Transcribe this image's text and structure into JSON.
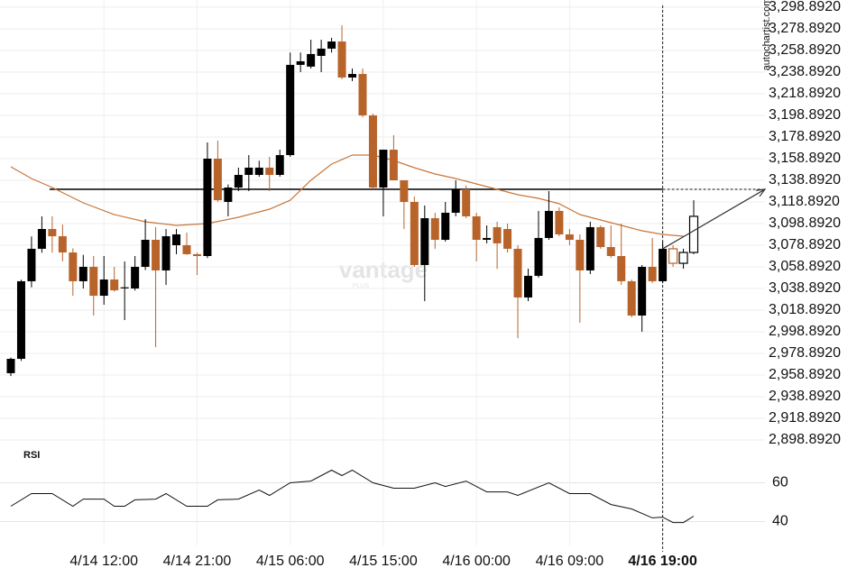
{
  "chart_data": {
    "type": "candlestick",
    "watermark": "vantage",
    "watermark_sub": "PLUS",
    "source": "autochartist.com",
    "up_color": "#000000",
    "down_color": "#b8632a",
    "grid": true,
    "ylim": [
      2888.892,
      3305.559
    ],
    "yticks": [
      {
        "value": 3298.892,
        "label": "3,298.8920"
      },
      {
        "value": 3278.892,
        "label": "3,278.8920"
      },
      {
        "value": 3258.892,
        "label": "3,258.8920"
      },
      {
        "value": 3238.892,
        "label": "3,238.8920"
      },
      {
        "value": 3218.892,
        "label": "3,218.8920"
      },
      {
        "value": 3198.892,
        "label": "3,198.8920"
      },
      {
        "value": 3178.892,
        "label": "3,178.8920"
      },
      {
        "value": 3158.892,
        "label": "3,158.8920"
      },
      {
        "value": 3138.892,
        "label": "3,138.8920"
      },
      {
        "value": 3118.892,
        "label": "3,118.8920"
      },
      {
        "value": 3098.892,
        "label": "3,098.8920"
      },
      {
        "value": 3078.892,
        "label": "3,078.8920"
      },
      {
        "value": 3058.892,
        "label": "3,058.8920"
      },
      {
        "value": 3038.892,
        "label": "3,038.8920"
      },
      {
        "value": 3018.892,
        "label": "3,018.8920"
      },
      {
        "value": 2998.892,
        "label": "2,998.8920"
      },
      {
        "value": 2978.892,
        "label": "2,978.8920"
      },
      {
        "value": 2958.892,
        "label": "2,958.8920"
      },
      {
        "value": 2938.892,
        "label": "2,938.8920"
      },
      {
        "value": 2918.892,
        "label": "2,918.8920"
      },
      {
        "value": 2898.892,
        "label": "2,898.8920"
      }
    ],
    "categories": [
      null,
      null,
      null,
      null,
      null,
      null,
      null,
      null,
      null,
      "4/14 12:00",
      null,
      null,
      null,
      null,
      null,
      null,
      null,
      null,
      "4/14 21:00",
      null,
      null,
      null,
      null,
      null,
      null,
      null,
      null,
      "4/15 06:00",
      null,
      null,
      null,
      null,
      null,
      null,
      null,
      null,
      "4/15 15:00",
      null,
      null,
      null,
      null,
      null,
      null,
      null,
      null,
      "4/16 00:00",
      null,
      null,
      null,
      null,
      null,
      null,
      null,
      null,
      "4/16 09:00",
      null,
      null,
      null,
      null,
      null,
      null,
      null,
      null,
      "4/16 19:00"
    ],
    "candles": [
      {
        "o": 2960.6,
        "h": 2975.0,
        "l": 2958.0,
        "c": 2973.9
      },
      {
        "o": 2973.9,
        "h": 3047.0,
        "l": 2972.0,
        "c": 3045.6
      },
      {
        "o": 3045.6,
        "h": 3087.0,
        "l": 3040.0,
        "c": 3075.6
      },
      {
        "o": 3075.6,
        "h": 3105.6,
        "l": 3072.0,
        "c": 3093.9
      },
      {
        "o": 3093.9,
        "h": 3105.6,
        "l": 3072.0,
        "c": 3087.2
      },
      {
        "o": 3087.2,
        "h": 3098.0,
        "l": 3064.0,
        "c": 3072.2
      },
      {
        "o": 3072.2,
        "h": 3076.0,
        "l": 3032.2,
        "c": 3045.6
      },
      {
        "o": 3045.6,
        "h": 3070.0,
        "l": 3038.9,
        "c": 3058.9
      },
      {
        "o": 3058.9,
        "h": 3068.9,
        "l": 3013.9,
        "c": 3032.2
      },
      {
        "o": 3032.2,
        "h": 3068.9,
        "l": 3023.9,
        "c": 3047.2
      },
      {
        "o": 3047.2,
        "h": 3058.9,
        "l": 3036.0,
        "c": 3037.2
      },
      {
        "o": 3039.0,
        "h": 3063.9,
        "l": 3009.7,
        "c": 3040.0
      },
      {
        "o": 3038.9,
        "h": 3068.9,
        "l": 3037.0,
        "c": 3058.9
      },
      {
        "o": 3058.9,
        "h": 3103.0,
        "l": 3056.0,
        "c": 3083.9
      },
      {
        "o": 3083.9,
        "h": 3095.6,
        "l": 2984.7,
        "c": 3055.6
      },
      {
        "o": 3055.6,
        "h": 3093.9,
        "l": 3042.2,
        "c": 3087.2
      },
      {
        "o": 3078.9,
        "h": 3093.9,
        "l": 3070.6,
        "c": 3088.9
      },
      {
        "o": 3078.9,
        "h": 3090.6,
        "l": 3070.0,
        "c": 3070.6
      },
      {
        "o": 3070.6,
        "h": 3072.0,
        "l": 3051.4,
        "c": 3068.9
      },
      {
        "o": 3068.9,
        "h": 3173.9,
        "l": 3067.0,
        "c": 3158.9
      },
      {
        "o": 3158.9,
        "h": 3175.6,
        "l": 3118.9,
        "c": 3120.5
      },
      {
        "o": 3118.9,
        "h": 3135.0,
        "l": 3105.6,
        "c": 3132.2
      },
      {
        "o": 3132.2,
        "h": 3150.6,
        "l": 3128.9,
        "c": 3143.9
      },
      {
        "o": 3143.9,
        "h": 3162.2,
        "l": 3128.9,
        "c": 3150.6
      },
      {
        "o": 3143.9,
        "h": 3157.0,
        "l": 3142.2,
        "c": 3150.6
      },
      {
        "o": 3150.6,
        "h": 3160.6,
        "l": 3128.9,
        "c": 3143.9
      },
      {
        "o": 3143.9,
        "h": 3167.2,
        "l": 3142.2,
        "c": 3162.2
      },
      {
        "o": 3162.2,
        "h": 3257.0,
        "l": 3160.6,
        "c": 3245.6
      },
      {
        "o": 3245.6,
        "h": 3257.0,
        "l": 3238.9,
        "c": 3248.9
      },
      {
        "o": 3244.0,
        "h": 3268.9,
        "l": 3242.2,
        "c": 3255.6
      },
      {
        "o": 3253.9,
        "h": 3268.9,
        "l": 3238.9,
        "c": 3260.6
      },
      {
        "o": 3260.6,
        "h": 3270.6,
        "l": 3257.0,
        "c": 3267.2
      },
      {
        "o": 3267.2,
        "h": 3282.2,
        "l": 3232.2,
        "c": 3233.9
      },
      {
        "o": 3233.9,
        "h": 3242.2,
        "l": 3230.6,
        "c": 3237.2
      },
      {
        "o": 3237.2,
        "h": 3242.2,
        "l": 3197.2,
        "c": 3198.9
      },
      {
        "o": 3198.9,
        "h": 3200.6,
        "l": 3130.6,
        "c": 3132.2
      },
      {
        "o": 3132.2,
        "h": 3167.2,
        "l": 3105.6,
        "c": 3167.2
      },
      {
        "o": 3167.2,
        "h": 3180.6,
        "l": 3138.9,
        "c": 3138.9
      },
      {
        "o": 3138.9,
        "h": 3138.9,
        "l": 3093.9,
        "c": 3118.9
      },
      {
        "o": 3118.9,
        "h": 3123.9,
        "l": 3058.9,
        "c": 3060.6
      },
      {
        "o": 3060.6,
        "h": 3115.6,
        "l": 3027.2,
        "c": 3103.9
      },
      {
        "o": 3103.9,
        "h": 3108.9,
        "l": 3075.6,
        "c": 3083.9
      },
      {
        "o": 3083.9,
        "h": 3118.9,
        "l": 3082.2,
        "c": 3108.9
      },
      {
        "o": 3108.9,
        "h": 3138.9,
        "l": 3105.6,
        "c": 3130.6
      },
      {
        "o": 3130.6,
        "h": 3133.9,
        "l": 3103.9,
        "c": 3105.6
      },
      {
        "o": 3105.6,
        "h": 3108.9,
        "l": 3063.9,
        "c": 3083.9
      },
      {
        "o": 3083.9,
        "h": 3097.2,
        "l": 3080.6,
        "c": 3085.6
      },
      {
        "o": 3095.6,
        "h": 3100.6,
        "l": 3057.0,
        "c": 3080.6
      },
      {
        "o": 3093.9,
        "h": 3098.9,
        "l": 3072.2,
        "c": 3075.6
      },
      {
        "o": 3075.6,
        "h": 3078.9,
        "l": 2993.0,
        "c": 3030.6
      },
      {
        "o": 3030.6,
        "h": 3057.2,
        "l": 3027.2,
        "c": 3050.6
      },
      {
        "o": 3050.6,
        "h": 3110.6,
        "l": 3048.9,
        "c": 3085.6
      },
      {
        "o": 3085.6,
        "h": 3128.9,
        "l": 3083.9,
        "c": 3110.6
      },
      {
        "o": 3110.6,
        "h": 3113.9,
        "l": 3087.2,
        "c": 3088.9
      },
      {
        "o": 3088.9,
        "h": 3093.9,
        "l": 3078.9,
        "c": 3083.9
      },
      {
        "o": 3083.9,
        "h": 3088.9,
        "l": 3007.2,
        "c": 3055.6
      },
      {
        "o": 3055.6,
        "h": 3100.6,
        "l": 3052.2,
        "c": 3095.6
      },
      {
        "o": 3095.6,
        "h": 3097.2,
        "l": 3075.6,
        "c": 3077.2
      },
      {
        "o": 3077.2,
        "h": 3097.2,
        "l": 3067.2,
        "c": 3068.9
      },
      {
        "o": 3068.9,
        "h": 3098.9,
        "l": 3042.2,
        "c": 3045.6
      },
      {
        "o": 3045.6,
        "h": 3047.2,
        "l": 3012.2,
        "c": 3013.9
      },
      {
        "o": 3013.9,
        "h": 3060.6,
        "l": 2998.9,
        "c": 3058.9
      },
      {
        "o": 3058.9,
        "h": 3085.6,
        "l": 3043.9,
        "c": 3045.6
      },
      {
        "o": 3045.6,
        "h": 3082.2,
        "l": 3043.9,
        "c": 3075.6
      }
    ],
    "projection": [
      {
        "o": 3075.6,
        "h": 3078.9,
        "l": 3058.9,
        "c": 3062.2
      },
      {
        "o": 3062.2,
        "h": 3075.6,
        "l": 3057.2,
        "c": 3072.2
      },
      {
        "o": 3072.2,
        "h": 3120.5,
        "l": 3070.6,
        "c": 3105.6
      }
    ],
    "resistance": 3130.6,
    "moving_average": {
      "color": "#c8763a",
      "x": [
        0,
        2,
        4,
        7,
        10,
        13,
        16,
        19,
        22,
        25,
        27,
        29,
        31,
        33,
        35,
        37,
        39,
        41,
        43,
        45,
        47,
        49,
        51,
        53,
        55,
        57,
        59,
        61,
        63,
        65
      ],
      "values": [
        3151.4,
        3140.6,
        3132.2,
        3118.1,
        3107.2,
        3100.6,
        3097.2,
        3098.9,
        3104.7,
        3112.2,
        3120.5,
        3138.9,
        3153.9,
        3162.2,
        3162.2,
        3157.2,
        3150.6,
        3144.7,
        3140.6,
        3135.6,
        3130.6,
        3125.6,
        3122.2,
        3117.2,
        3107.2,
        3102.2,
        3097.2,
        3092.2,
        3088.9,
        3087.2
      ]
    },
    "rsi": {
      "label": "RSI",
      "color": "#111111",
      "ylim": [
        30,
        70
      ],
      "yticks": [
        40,
        60
      ],
      "x": [
        0,
        2,
        4,
        6,
        7,
        9,
        10,
        11,
        12,
        14,
        15,
        17,
        19,
        20,
        22,
        24,
        25,
        27,
        29,
        31,
        32,
        33,
        35,
        37,
        39,
        41,
        42,
        44,
        46,
        48,
        49,
        52,
        54,
        56,
        58,
        60,
        62,
        63,
        64,
        65,
        66
      ],
      "values": [
        47.9,
        54.4,
        54.4,
        47.9,
        51.6,
        51.6,
        47.9,
        47.9,
        51.2,
        51.6,
        54.4,
        47.9,
        47.9,
        51.2,
        51.6,
        56.3,
        53.5,
        60.0,
        60.9,
        66.5,
        63.7,
        66.5,
        60.0,
        57.2,
        57.2,
        60.0,
        58.1,
        60.9,
        55.3,
        55.3,
        53.5,
        60.0,
        54.4,
        54.4,
        48.8,
        46.5,
        41.9,
        42.3,
        39.5,
        39.5,
        42.8
      ]
    }
  }
}
